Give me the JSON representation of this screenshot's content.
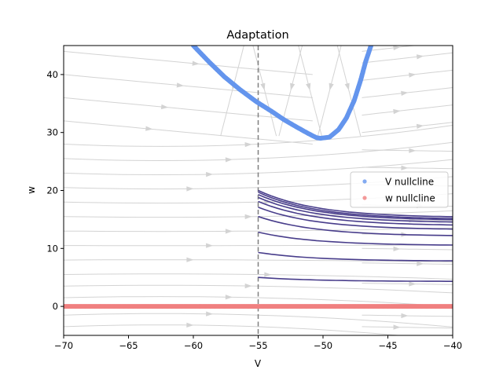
{
  "chart_data": {
    "type": "scatter",
    "title": "Adaptation",
    "xlabel": "V",
    "ylabel": "w",
    "xlim": [
      -70,
      -40
    ],
    "ylim": [
      -5,
      45
    ],
    "x_ticks": [
      -70,
      -65,
      -60,
      -55,
      -50,
      -45,
      -40
    ],
    "y_ticks": [
      0,
      10,
      20,
      30,
      40
    ],
    "x_tick_labels": [
      "−70",
      "−65",
      "−60",
      "−55",
      "−50",
      "−45",
      "−40"
    ],
    "y_tick_labels": [
      "0",
      "10",
      "20",
      "30",
      "40"
    ],
    "grid": false,
    "legend_position": "center-right",
    "colors": {
      "v_nullcline": "#6495ED",
      "w_nullcline": "#F08080",
      "trajectories": "#483D8B",
      "streamlines": "#D3D3D3",
      "reset_line": "#808080"
    },
    "reset_potential": -55,
    "series": [
      {
        "name": "V nullcline",
        "points": [
          [
            -60.0,
            45.0
          ],
          [
            -58.8,
            42.2
          ],
          [
            -57.6,
            39.6
          ],
          [
            -56.4,
            37.4
          ],
          [
            -55.2,
            35.4
          ],
          [
            -54.0,
            33.7
          ],
          [
            -53.0,
            32.2
          ],
          [
            -52.0,
            30.9
          ],
          [
            -51.2,
            29.9
          ],
          [
            -50.5,
            29.1
          ],
          [
            -50.2,
            29.0
          ],
          [
            -49.5,
            29.2
          ],
          [
            -48.8,
            30.5
          ],
          [
            -48.2,
            32.5
          ],
          [
            -47.6,
            35.5
          ],
          [
            -47.1,
            39.0
          ],
          [
            -46.7,
            42.3
          ],
          [
            -46.3,
            45.0
          ]
        ]
      },
      {
        "name": "w nullcline",
        "points": [
          [
            -70,
            0
          ],
          [
            -65,
            0
          ],
          [
            -60,
            0
          ],
          [
            -55,
            0
          ],
          [
            -50,
            0
          ],
          [
            -45,
            0
          ],
          [
            -40,
            0
          ]
        ]
      }
    ],
    "trajectories": [
      {
        "start_w": 20.0,
        "end_w": 15.3
      },
      {
        "start_w": 19.7,
        "end_w": 15.0
      },
      {
        "start_w": 19.3,
        "end_w": 14.8
      },
      {
        "start_w": 18.8,
        "end_w": 14.4
      },
      {
        "start_w": 18.1,
        "end_w": 13.9
      },
      {
        "start_w": 17.1,
        "end_w": 13.2
      },
      {
        "start_w": 15.5,
        "end_w": 12.1
      },
      {
        "start_w": 12.8,
        "end_w": 10.5
      },
      {
        "start_w": 9.3,
        "end_w": 7.8
      },
      {
        "start_w": 5.0,
        "end_w": 4.3
      },
      {
        "start_w": 0.0,
        "end_w": 0.0
      }
    ],
    "streamline_directions": [
      "rightward-bottom",
      "rightward-middle",
      "toward-v-nullcline-top"
    ]
  }
}
